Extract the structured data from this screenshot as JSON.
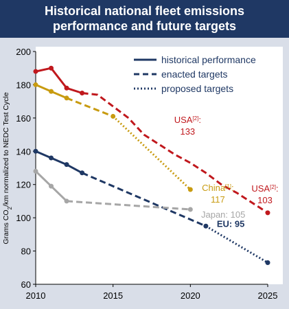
{
  "header": {
    "title_line1": "Historical national fleet emissions",
    "title_line2": "performance and future targets"
  },
  "chart_data": {
    "type": "line",
    "ylabel": "Grams CO2/km normalized to NEDC Test Cycle",
    "xlim": [
      2010,
      2025
    ],
    "ylim": [
      60,
      200
    ],
    "x_ticks": [
      2010,
      2015,
      2020,
      2025
    ],
    "y_ticks": [
      60,
      80,
      100,
      120,
      140,
      160,
      180,
      200
    ],
    "grid": false,
    "legend_position": "top-right",
    "legend": [
      {
        "label": "historical performance",
        "style": "solid"
      },
      {
        "label": "enacted targets",
        "style": "dashed"
      },
      {
        "label": "proposed targets",
        "style": "dotted"
      }
    ],
    "series": [
      {
        "region": "USA",
        "color": "#c0181d",
        "segments": [
          {
            "style": "solid",
            "points": [
              [
                2010,
                188
              ],
              [
                2011,
                190
              ],
              [
                2012,
                178
              ],
              [
                2013,
                175
              ]
            ]
          },
          {
            "style": "dashed",
            "points": [
              [
                2013,
                175
              ],
              [
                2014,
                174
              ],
              [
                2015,
                167
              ],
              [
                2016,
                160
              ],
              [
                2017,
                150
              ],
              [
                2018,
                144
              ],
              [
                2019,
                138
              ],
              [
                2020,
                133
              ],
              [
                2021,
                127
              ],
              [
                2022,
                120
              ],
              [
                2023,
                115
              ],
              [
                2024,
                109
              ],
              [
                2025,
                103
              ]
            ]
          }
        ],
        "labels": [
          {
            "text": "USA[2]:",
            "value": "133",
            "at": [
              2020,
              133
            ]
          },
          {
            "text": "USA[2]:",
            "value": "103",
            "at": [
              2025,
              103
            ]
          }
        ]
      },
      {
        "region": "China",
        "color": "#c89b10",
        "segments": [
          {
            "style": "solid",
            "points": [
              [
                2010,
                180
              ],
              [
                2011,
                176
              ],
              [
                2012,
                172
              ]
            ]
          },
          {
            "style": "dashed",
            "points": [
              [
                2012,
                172
              ],
              [
                2015,
                161
              ]
            ]
          },
          {
            "style": "dotted",
            "points": [
              [
                2015,
                161
              ],
              [
                2020,
                117
              ]
            ]
          }
        ],
        "labels": [
          {
            "text": "China[1]:",
            "value": "117",
            "at": [
              2020,
              117
            ]
          }
        ]
      },
      {
        "region": "EU",
        "color": "#1f3864",
        "segments": [
          {
            "style": "solid",
            "points": [
              [
                2010,
                140
              ],
              [
                2011,
                136
              ],
              [
                2012,
                132
              ],
              [
                2013,
                127
              ]
            ]
          },
          {
            "style": "dashed",
            "points": [
              [
                2013,
                127
              ],
              [
                2021,
                95
              ]
            ]
          },
          {
            "style": "dotted",
            "points": [
              [
                2021,
                95
              ],
              [
                2025,
                73
              ]
            ]
          }
        ],
        "labels": [
          {
            "text": "EU: 95",
            "value": "",
            "at": [
              2021,
              95
            ]
          }
        ]
      },
      {
        "region": "Japan",
        "color": "#a6a6a6",
        "segments": [
          {
            "style": "solid",
            "points": [
              [
                2010,
                128
              ],
              [
                2011,
                119
              ],
              [
                2012,
                110
              ]
            ]
          },
          {
            "style": "dashed",
            "points": [
              [
                2012,
                110
              ],
              [
                2020,
                105
              ]
            ]
          }
        ],
        "labels": [
          {
            "text": "Japan: 105",
            "value": "",
            "at": [
              2020,
              105
            ]
          }
        ]
      }
    ]
  }
}
